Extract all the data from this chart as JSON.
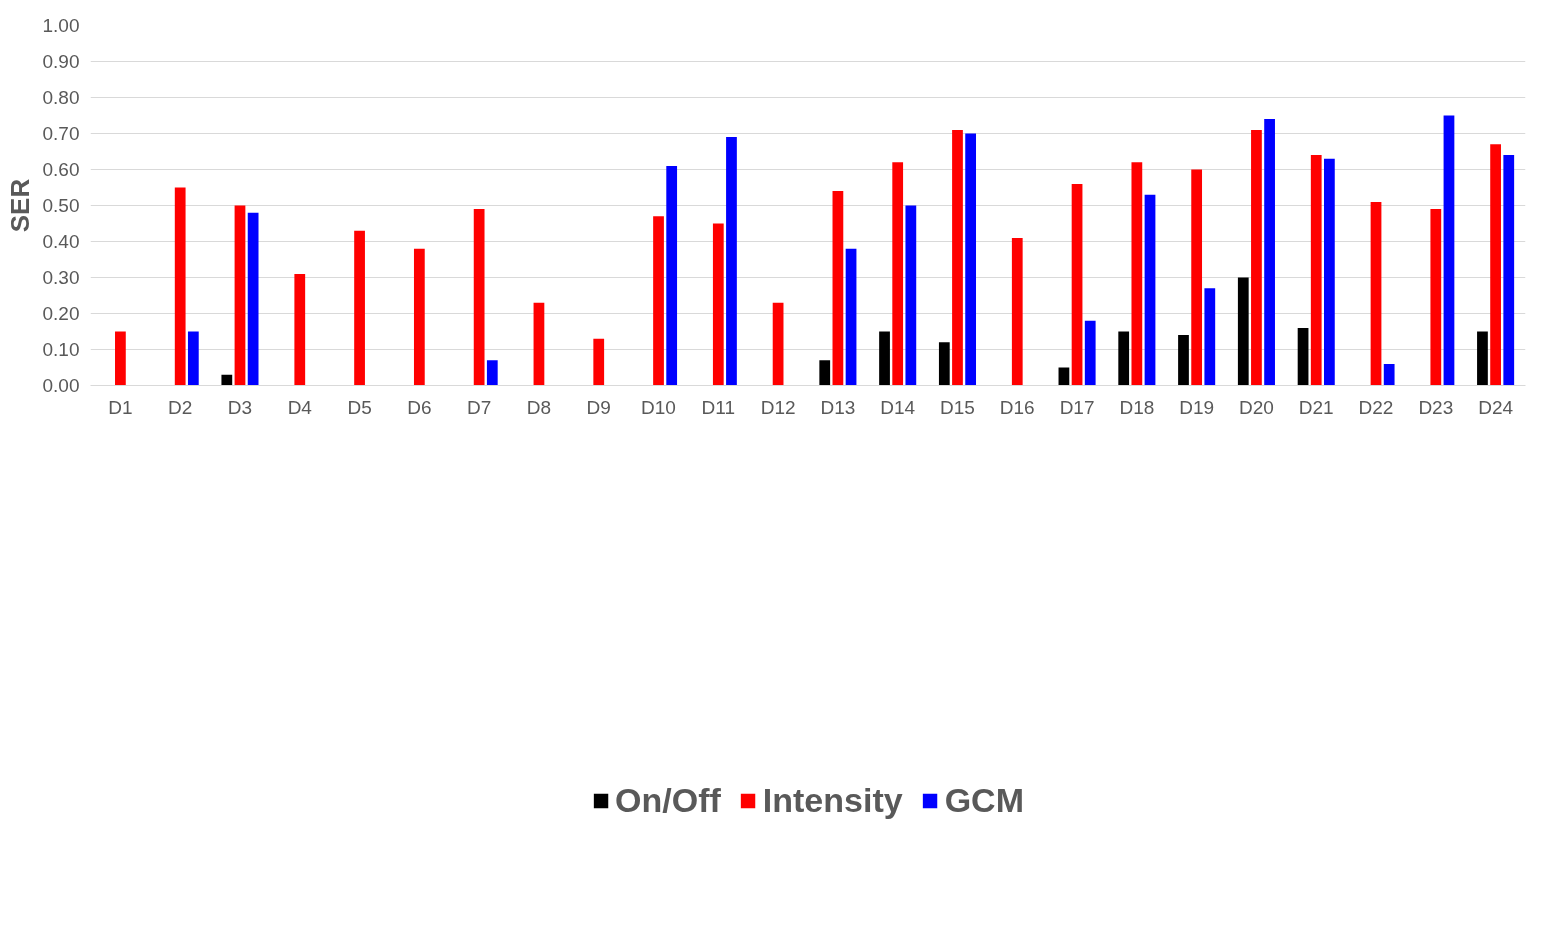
{
  "chart_data": {
    "type": "bar",
    "ylabel": "SER",
    "categories": [
      "D1",
      "D2",
      "D3",
      "D4",
      "D5",
      "D6",
      "D7",
      "D8",
      "D9",
      "D10",
      "D11",
      "D12",
      "D13",
      "D14",
      "D15",
      "D16",
      "D17",
      "D18",
      "D19",
      "D20",
      "D21",
      "D22",
      "D23",
      "D24"
    ],
    "series": [
      {
        "name": "On/Off",
        "color": "#000000",
        "values": [
          0,
          0,
          0.03,
          0,
          0,
          0,
          0,
          0,
          0,
          0,
          0,
          0,
          0.07,
          0.15,
          0.12,
          0,
          0.05,
          0.15,
          0.14,
          0.3,
          0.16,
          0,
          0,
          0.15
        ]
      },
      {
        "name": "Intensity",
        "color": "#ff0000",
        "values": [
          0.15,
          0.55,
          0.5,
          0.31,
          0.43,
          0.38,
          0.49,
          0.23,
          0.13,
          0.47,
          0.45,
          0.23,
          0.54,
          0.62,
          0.71,
          0.41,
          0.56,
          0.62,
          0.6,
          0.71,
          0.64,
          0.51,
          0.49,
          0.67
        ]
      },
      {
        "name": "GCM",
        "color": "#0000ff",
        "values": [
          0,
          0.15,
          0.48,
          0,
          0,
          0,
          0.07,
          0,
          0,
          0.61,
          0.69,
          0,
          0.38,
          0.5,
          0.7,
          0,
          0.18,
          0.53,
          0.27,
          0.74,
          0.63,
          0.06,
          0.75,
          0.64
        ]
      }
    ],
    "ylim": [
      0,
      1
    ],
    "yticks": [
      {
        "value": 0,
        "label": "0.00"
      },
      {
        "value": 0.1,
        "label": "0.10"
      },
      {
        "value": 0.2,
        "label": "0.20"
      },
      {
        "value": 0.3,
        "label": "0.30"
      },
      {
        "value": 0.4,
        "label": "0.40"
      },
      {
        "value": 0.5,
        "label": "0.50"
      },
      {
        "value": 0.6,
        "label": "0.60"
      },
      {
        "value": 0.7,
        "label": "0.70"
      },
      {
        "value": 0.8,
        "label": "0.80"
      },
      {
        "value": 0.9,
        "label": "0.90"
      },
      {
        "value": 1,
        "label": "1.00"
      }
    ],
    "grid": "y",
    "legend": "bottom"
  }
}
